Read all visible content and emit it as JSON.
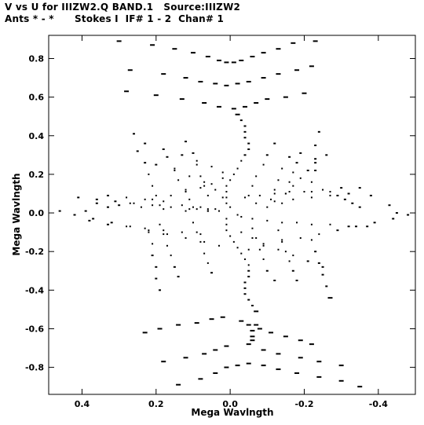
{
  "header": {
    "line1": "V vs U for IIIZW2.Q BAND.1   Source:IIIZW2",
    "line2": "Ants * - *      Stokes I  IF# 1 - 2  Chan# 1"
  },
  "chart_data": {
    "type": "scatter",
    "title": "V vs U for IIIZW2.Q BAND.1   Source:IIIZW2",
    "subtitle": "Ants * - *      Stokes I  IF# 1 - 2  Chan# 1",
    "xlabel": "Mega Wavlngth",
    "ylabel": "Mega Wavlngth",
    "xlim": [
      0.49,
      -0.5
    ],
    "ylim": [
      -0.94,
      0.92
    ],
    "x_reversed": true,
    "xticks": [
      0.4,
      0.2,
      0.0,
      -0.2,
      -0.4
    ],
    "xtick_labels": [
      "0.4",
      "0.2",
      "0.0",
      "-0.2",
      "-0.4"
    ],
    "yticks": [
      0.8,
      0.6,
      0.4,
      0.2,
      0.0,
      -0.2,
      -0.4,
      -0.6,
      -0.8
    ],
    "ytick_labels": [
      "0.8",
      "0.6",
      "0.4",
      "0.2",
      "0.0",
      "-0.2",
      "-0.4",
      "-0.6",
      "-0.8"
    ],
    "grid": false,
    "marker_color": "#000000",
    "series": [
      {
        "points": [
          [
            0.3,
            0.89
          ],
          [
            0.21,
            0.87
          ],
          [
            0.15,
            0.85
          ],
          [
            0.1,
            0.83
          ],
          [
            0.06,
            0.81
          ],
          [
            0.03,
            0.79
          ],
          [
            0.01,
            0.78
          ],
          [
            -0.01,
            0.78
          ],
          [
            -0.03,
            0.79
          ],
          [
            -0.06,
            0.81
          ],
          [
            -0.09,
            0.83
          ],
          [
            -0.13,
            0.85
          ],
          [
            -0.17,
            0.88
          ],
          [
            -0.23,
            0.89
          ],
          [
            0.27,
            0.74
          ],
          [
            0.18,
            0.72
          ],
          [
            0.12,
            0.7
          ],
          [
            0.08,
            0.68
          ],
          [
            0.04,
            0.67
          ],
          [
            0.01,
            0.66
          ],
          [
            -0.02,
            0.67
          ],
          [
            -0.05,
            0.68
          ],
          [
            -0.09,
            0.7
          ],
          [
            -0.13,
            0.72
          ],
          [
            -0.18,
            0.74
          ],
          [
            -0.22,
            0.76
          ],
          [
            0.28,
            0.63
          ],
          [
            0.2,
            0.61
          ],
          [
            0.13,
            0.59
          ],
          [
            0.07,
            0.57
          ],
          [
            0.03,
            0.55
          ],
          [
            -0.01,
            0.54
          ],
          [
            -0.04,
            0.55
          ],
          [
            -0.07,
            0.57
          ],
          [
            -0.1,
            0.59
          ],
          [
            -0.15,
            0.6
          ],
          [
            -0.2,
            0.62
          ],
          [
            -0.02,
            0.51
          ],
          [
            -0.03,
            0.48
          ],
          [
            -0.04,
            0.45
          ],
          [
            -0.04,
            0.42
          ],
          [
            -0.04,
            0.39
          ],
          [
            -0.05,
            0.36
          ],
          [
            -0.05,
            0.33
          ],
          [
            -0.04,
            0.3
          ],
          [
            -0.03,
            0.27
          ],
          [
            -0.02,
            0.23
          ],
          [
            -0.01,
            0.2
          ],
          [
            0.0,
            0.17
          ],
          [
            0.01,
            0.14
          ],
          [
            0.01,
            0.11
          ],
          [
            0.01,
            0.08
          ],
          [
            0.01,
            0.05
          ],
          [
            0.0,
            0.03
          ],
          [
            0.26,
            0.41
          ],
          [
            0.23,
            0.36
          ],
          [
            0.18,
            0.33
          ],
          [
            0.13,
            0.3
          ],
          [
            0.09,
            0.27
          ],
          [
            0.05,
            0.24
          ],
          [
            0.02,
            0.21
          ],
          [
            0.25,
            0.32
          ],
          [
            0.23,
            0.26
          ],
          [
            0.22,
            0.2
          ],
          [
            0.21,
            0.14
          ],
          [
            0.2,
            0.09
          ],
          [
            0.19,
            0.04
          ],
          [
            0.2,
            0.25
          ],
          [
            0.15,
            0.22
          ],
          [
            0.11,
            0.19
          ],
          [
            0.07,
            0.16
          ],
          [
            0.04,
            0.12
          ],
          [
            0.02,
            0.08
          ],
          [
            0.17,
            0.29
          ],
          [
            0.15,
            0.23
          ],
          [
            0.14,
            0.17
          ],
          [
            0.12,
            0.12
          ],
          [
            0.11,
            0.07
          ],
          [
            0.1,
            0.03
          ],
          [
            0.12,
            0.37
          ],
          [
            0.1,
            0.31
          ],
          [
            0.09,
            0.25
          ],
          [
            0.08,
            0.19
          ],
          [
            0.07,
            0.14
          ],
          [
            0.06,
            0.09
          ],
          [
            -0.12,
            0.36
          ],
          [
            -0.1,
            0.3
          ],
          [
            -0.09,
            0.25
          ],
          [
            -0.07,
            0.19
          ],
          [
            -0.06,
            0.14
          ],
          [
            -0.05,
            0.09
          ],
          [
            -0.16,
            0.29
          ],
          [
            -0.14,
            0.23
          ],
          [
            -0.13,
            0.17
          ],
          [
            -0.12,
            0.12
          ],
          [
            -0.11,
            0.07
          ],
          [
            -0.1,
            0.03
          ],
          [
            -0.19,
            0.31
          ],
          [
            -0.18,
            0.26
          ],
          [
            -0.17,
            0.21
          ],
          [
            -0.16,
            0.16
          ],
          [
            -0.15,
            0.1
          ],
          [
            -0.14,
            0.05
          ],
          [
            -0.26,
            0.3
          ],
          [
            -0.23,
            0.26
          ],
          [
            -0.21,
            0.22
          ],
          [
            -0.19,
            0.18
          ],
          [
            -0.17,
            0.14
          ],
          [
            -0.15,
            0.1
          ],
          [
            -0.24,
            0.42
          ],
          [
            -0.23,
            0.35
          ],
          [
            -0.23,
            0.28
          ],
          [
            -0.23,
            0.22
          ],
          [
            -0.22,
            0.16
          ],
          [
            -0.22,
            0.11
          ],
          [
            0.02,
            0.18
          ],
          [
            0.05,
            0.15
          ],
          [
            0.08,
            0.13
          ],
          [
            0.12,
            0.11
          ],
          [
            0.16,
            0.09
          ],
          [
            0.21,
            0.07
          ],
          [
            0.27,
            0.05
          ],
          [
            0.33,
            0.03
          ],
          [
            0.39,
            0.01
          ],
          [
            0.41,
            0.08
          ],
          [
            0.36,
            0.07
          ],
          [
            0.31,
            0.06
          ],
          [
            0.26,
            0.05
          ],
          [
            0.21,
            0.04
          ],
          [
            0.16,
            0.03
          ],
          [
            0.11,
            0.02
          ],
          [
            0.06,
            0.01
          ],
          [
            0.33,
            0.09
          ],
          [
            0.28,
            0.08
          ],
          [
            0.23,
            0.07
          ],
          [
            0.18,
            0.06
          ],
          [
            0.13,
            0.04
          ],
          [
            0.08,
            0.03
          ],
          [
            0.04,
            0.02
          ],
          [
            0.36,
            0.05
          ],
          [
            0.3,
            0.04
          ],
          [
            0.24,
            0.03
          ],
          [
            0.18,
            0.02
          ],
          [
            0.12,
            0.01
          ],
          [
            0.06,
            0.01
          ],
          [
            0.46,
            0.01
          ],
          [
            0.42,
            -0.01
          ],
          [
            0.37,
            -0.03
          ],
          [
            0.32,
            -0.05
          ],
          [
            0.27,
            -0.07
          ],
          [
            0.22,
            -0.09
          ],
          [
            0.17,
            -0.11
          ],
          [
            0.12,
            -0.13
          ],
          [
            0.07,
            -0.15
          ],
          [
            0.03,
            -0.17
          ],
          [
            0.38,
            -0.04
          ],
          [
            0.33,
            -0.06
          ],
          [
            0.28,
            -0.07
          ],
          [
            0.23,
            -0.08
          ],
          [
            0.18,
            -0.09
          ],
          [
            0.13,
            -0.1
          ],
          [
            0.08,
            -0.11
          ],
          [
            -0.04,
            0.08
          ],
          [
            -0.08,
            0.09
          ],
          [
            -0.12,
            0.1
          ],
          [
            -0.16,
            0.11
          ],
          [
            -0.2,
            0.11
          ],
          [
            -0.25,
            0.12
          ],
          [
            -0.3,
            0.13
          ],
          [
            -0.35,
            0.13
          ],
          [
            -0.27,
            0.11
          ],
          [
            -0.29,
            0.09
          ],
          [
            -0.31,
            0.07
          ],
          [
            -0.33,
            0.05
          ],
          [
            -0.35,
            0.03
          ],
          [
            -0.07,
            0.05
          ],
          [
            -0.12,
            0.06
          ],
          [
            -0.17,
            0.07
          ],
          [
            -0.22,
            0.08
          ],
          [
            -0.27,
            0.09
          ],
          [
            -0.32,
            0.1
          ],
          [
            -0.38,
            0.09
          ],
          [
            -0.43,
            0.04
          ],
          [
            -0.45,
            0.0
          ],
          [
            -0.48,
            -0.01
          ],
          [
            -0.44,
            -0.03
          ],
          [
            -0.39,
            -0.05
          ],
          [
            -0.34,
            -0.07
          ],
          [
            -0.29,
            -0.09
          ],
          [
            -0.24,
            -0.11
          ],
          [
            -0.19,
            -0.13
          ],
          [
            -0.14,
            -0.15
          ],
          [
            -0.09,
            -0.17
          ],
          [
            -0.05,
            -0.19
          ],
          [
            -0.03,
            -0.02
          ],
          [
            -0.06,
            -0.03
          ],
          [
            -0.1,
            -0.04
          ],
          [
            -0.14,
            -0.05
          ],
          [
            -0.18,
            -0.05
          ],
          [
            -0.22,
            -0.06
          ],
          [
            -0.27,
            -0.06
          ],
          [
            -0.32,
            -0.07
          ],
          [
            -0.37,
            -0.07
          ],
          [
            0.03,
            0.01
          ],
          [
            0.06,
            0.02
          ],
          [
            0.09,
            0.02
          ],
          [
            -0.02,
            -0.01
          ],
          [
            0.01,
            -0.03
          ],
          [
            0.01,
            -0.06
          ],
          [
            0.01,
            -0.09
          ],
          [
            0.0,
            -0.12
          ],
          [
            -0.01,
            -0.15
          ],
          [
            -0.02,
            -0.18
          ],
          [
            -0.03,
            -0.21
          ],
          [
            -0.04,
            -0.24
          ],
          [
            -0.05,
            -0.27
          ],
          [
            -0.05,
            -0.3
          ],
          [
            -0.05,
            -0.33
          ],
          [
            -0.04,
            -0.36
          ],
          [
            -0.04,
            -0.39
          ],
          [
            -0.04,
            -0.42
          ],
          [
            -0.05,
            -0.45
          ],
          [
            -0.06,
            -0.48
          ],
          [
            -0.07,
            -0.51
          ],
          [
            0.19,
            -0.06
          ],
          [
            0.18,
            -0.11
          ],
          [
            0.17,
            -0.17
          ],
          [
            0.16,
            -0.22
          ],
          [
            0.15,
            -0.28
          ],
          [
            0.14,
            -0.33
          ],
          [
            0.1,
            -0.05
          ],
          [
            0.09,
            -0.1
          ],
          [
            0.08,
            -0.15
          ],
          [
            0.07,
            -0.21
          ],
          [
            0.06,
            -0.26
          ],
          [
            0.05,
            -0.31
          ],
          [
            0.22,
            -0.1
          ],
          [
            0.21,
            -0.16
          ],
          [
            0.21,
            -0.22
          ],
          [
            0.2,
            -0.28
          ],
          [
            0.2,
            -0.34
          ],
          [
            0.19,
            -0.4
          ],
          [
            -0.06,
            -0.08
          ],
          [
            -0.07,
            -0.13
          ],
          [
            -0.08,
            -0.19
          ],
          [
            -0.09,
            -0.24
          ],
          [
            -0.1,
            -0.3
          ],
          [
            -0.12,
            -0.35
          ],
          [
            -0.13,
            -0.09
          ],
          [
            -0.14,
            -0.14
          ],
          [
            -0.15,
            -0.2
          ],
          [
            -0.16,
            -0.25
          ],
          [
            -0.17,
            -0.3
          ],
          [
            -0.18,
            -0.35
          ],
          [
            -0.03,
            -0.1
          ],
          [
            -0.06,
            -0.13
          ],
          [
            -0.09,
            -0.16
          ],
          [
            -0.13,
            -0.19
          ],
          [
            -0.17,
            -0.22
          ],
          [
            -0.21,
            -0.25
          ],
          [
            -0.25,
            -0.28
          ],
          [
            -0.22,
            -0.14
          ],
          [
            -0.23,
            -0.2
          ],
          [
            -0.24,
            -0.26
          ],
          [
            -0.25,
            -0.32
          ],
          [
            -0.26,
            -0.38
          ],
          [
            -0.27,
            -0.44
          ],
          [
            0.23,
            -0.62
          ],
          [
            0.19,
            -0.6
          ],
          [
            0.14,
            -0.58
          ],
          [
            0.09,
            -0.57
          ],
          [
            0.05,
            -0.55
          ],
          [
            0.02,
            -0.54
          ],
          [
            -0.03,
            -0.56
          ],
          [
            -0.05,
            -0.58
          ],
          [
            -0.08,
            -0.6
          ],
          [
            -0.11,
            -0.62
          ],
          [
            -0.15,
            -0.64
          ],
          [
            -0.19,
            -0.66
          ],
          [
            -0.22,
            -0.68
          ],
          [
            0.18,
            -0.77
          ],
          [
            0.12,
            -0.75
          ],
          [
            0.07,
            -0.73
          ],
          [
            0.04,
            -0.71
          ],
          [
            0.01,
            -0.69
          ],
          [
            -0.05,
            -0.68
          ],
          [
            -0.09,
            -0.71
          ],
          [
            -0.13,
            -0.73
          ],
          [
            -0.19,
            -0.75
          ],
          [
            -0.24,
            -0.77
          ],
          [
            -0.3,
            -0.79
          ],
          [
            0.14,
            -0.89
          ],
          [
            0.08,
            -0.86
          ],
          [
            0.04,
            -0.83
          ],
          [
            0.01,
            -0.8
          ],
          [
            -0.02,
            -0.79
          ],
          [
            -0.05,
            -0.78
          ],
          [
            -0.09,
            -0.79
          ],
          [
            -0.13,
            -0.81
          ],
          [
            -0.18,
            -0.83
          ],
          [
            -0.24,
            -0.85
          ],
          [
            -0.3,
            -0.87
          ],
          [
            -0.35,
            -0.9
          ],
          [
            -0.06,
            -0.64
          ],
          [
            -0.06,
            -0.61
          ],
          [
            -0.07,
            -0.58
          ],
          [
            -0.06,
            -0.66
          ]
        ]
      }
    ]
  }
}
